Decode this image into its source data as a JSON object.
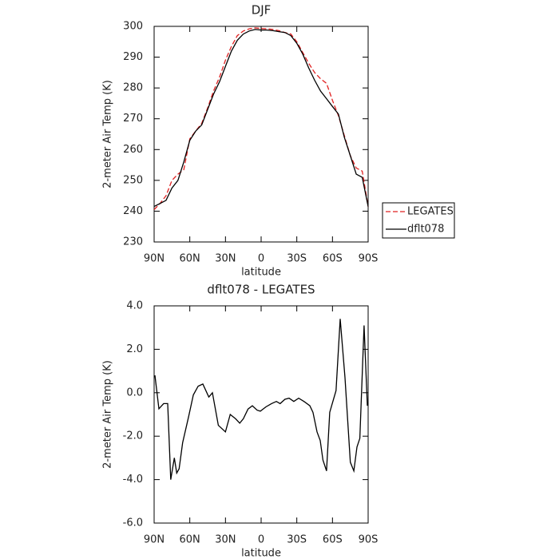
{
  "chart_data": [
    {
      "type": "line",
      "title": "DJF",
      "xlabel": "latitude",
      "ylabel": "2-meter Air Temp (K)",
      "x": [
        90,
        85,
        80,
        75,
        70,
        65,
        60,
        55,
        50,
        45,
        40,
        35,
        30,
        25,
        20,
        15,
        10,
        5,
        0,
        -5,
        -10,
        -15,
        -20,
        -25,
        -30,
        -35,
        -40,
        -45,
        -50,
        -55,
        -60,
        -65,
        -70,
        -75,
        -80,
        -85,
        -90
      ],
      "series": [
        {
          "name": "LEGATES",
          "color": "#e02020",
          "dash": true,
          "values": [
            240.5,
            242.5,
            245,
            250,
            252,
            253.5,
            263.5,
            266,
            268.5,
            273.5,
            279,
            283.5,
            289,
            293.5,
            297,
            298.5,
            299.2,
            299.5,
            299.3,
            299.2,
            299,
            298.6,
            298,
            297.5,
            295,
            291.5,
            288,
            285,
            283,
            281.5,
            276,
            271,
            264.5,
            258,
            254,
            253,
            241.5
          ]
        },
        {
          "name": "dflt078",
          "color": "#000000",
          "dash": false,
          "values": [
            241.5,
            242.5,
            243.5,
            247.5,
            250,
            256,
            263,
            266,
            268,
            273,
            278,
            282,
            287,
            292,
            295.5,
            297.5,
            298.5,
            299,
            298.8,
            298.8,
            298.6,
            298.3,
            298,
            297,
            294.5,
            291,
            286.5,
            282.5,
            279,
            276.5,
            274,
            271.5,
            264,
            258,
            252,
            251,
            241.5
          ]
        }
      ],
      "xlim": [
        90,
        -90
      ],
      "ylim": [
        230,
        300
      ],
      "xticks": [
        {
          "value": 90,
          "label": "90N"
        },
        {
          "value": 60,
          "label": "60N"
        },
        {
          "value": 30,
          "label": "30N"
        },
        0,
        {
          "value": -30,
          "label": "30S"
        },
        {
          "value": -60,
          "label": "60S"
        },
        {
          "value": -90,
          "label": "90S"
        }
      ],
      "yticks": [
        230,
        240,
        250,
        260,
        270,
        280,
        290,
        300
      ],
      "legend": "right"
    },
    {
      "type": "line",
      "title": "dflt078 - LEGATES",
      "xlabel": "latitude",
      "ylabel": "2-meter Air Temp (K)",
      "x": [
        89.3,
        86,
        82,
        78.6,
        76,
        73,
        71,
        69,
        66,
        61,
        57,
        53,
        49,
        44,
        41,
        36,
        30,
        26,
        21.5,
        18,
        15,
        11,
        7.4,
        3.4,
        0.7,
        -4,
        -8.7,
        -12.8,
        -16,
        -20,
        -23.5,
        -27.5,
        -31.6,
        -36,
        -41,
        -43.6,
        -47,
        -49.7,
        -52,
        -55,
        -57.7,
        -63,
        -66.5,
        -70.5,
        -75,
        -78,
        -80.6,
        -83,
        -86.6,
        -89.3
      ],
      "series": [
        {
          "color": "#000000",
          "dash": false,
          "values": [
            0.8,
            -0.74,
            -0.5,
            -0.5,
            -4.0,
            -3.0,
            -3.7,
            -3.5,
            -2.3,
            -1.1,
            -0.1,
            0.3,
            0.4,
            -0.2,
            0.0,
            -1.5,
            -1.8,
            -1.0,
            -1.2,
            -1.4,
            -1.2,
            -0.75,
            -0.6,
            -0.8,
            -0.85,
            -0.65,
            -0.5,
            -0.4,
            -0.5,
            -0.3,
            -0.25,
            -0.4,
            -0.25,
            -0.4,
            -0.6,
            -0.9,
            -1.8,
            -2.2,
            -3.1,
            -3.6,
            -0.9,
            0.1,
            3.4,
            0.7,
            -3.2,
            -3.6,
            -2.5,
            -2.1,
            3.1,
            -0.6
          ]
        }
      ],
      "xlim": [
        90,
        -90
      ],
      "ylim": [
        -6,
        4
      ],
      "xticks": [
        {
          "value": 90,
          "label": "90N"
        },
        {
          "value": 60,
          "label": "60N"
        },
        {
          "value": 30,
          "label": "30N"
        },
        0,
        {
          "value": -30,
          "label": "30S"
        },
        {
          "value": -60,
          "label": "60S"
        },
        {
          "value": -90,
          "label": "90S"
        }
      ],
      "yticks": [
        {
          "value": -6,
          "label": "-6.0"
        },
        {
          "value": -4,
          "label": "-4.0"
        },
        {
          "value": -2,
          "label": "-2.0"
        },
        {
          "value": 0,
          "label": "0.0"
        },
        {
          "value": 2,
          "label": "2.0"
        },
        {
          "value": 4,
          "label": "4.0"
        }
      ]
    }
  ]
}
